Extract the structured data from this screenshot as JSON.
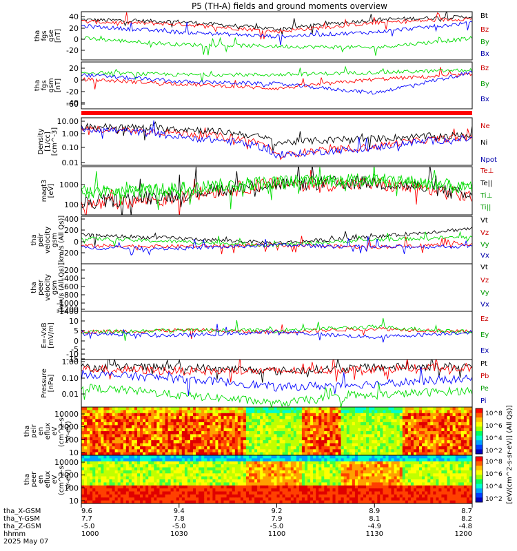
{
  "title": "P5 (TH-A) fields and ground moments overview",
  "colors": {
    "black": "#000000",
    "red": "#ff0000",
    "green": "#00dd00",
    "blue": "#0000ff",
    "darkred": "#cc0000",
    "darkgreen": "#009900",
    "darkblue": "#0000aa"
  },
  "panels": [
    {
      "id": "fgs_gse",
      "ylabel": [
        "tha",
        "fgs",
        "gse",
        "[nT]"
      ],
      "ticks": [
        "40",
        "20",
        "0",
        "-20"
      ],
      "legend": [
        {
          "label": "Bt",
          "color": "#000000"
        },
        {
          "label": "Bz",
          "color": "#cc0000"
        },
        {
          "label": "By",
          "color": "#009900"
        },
        {
          "label": "Bx",
          "color": "#0000aa"
        }
      ]
    },
    {
      "id": "fgs_gsm",
      "ylabel": [
        "tha",
        "fgs",
        "gsm",
        "[nT]"
      ],
      "ticks": [
        "20",
        "0",
        "-20",
        "-40",
        "-60"
      ],
      "legend": [
        {
          "label": "Bz",
          "color": "#cc0000"
        },
        {
          "label": "By",
          "color": "#009900"
        },
        {
          "label": "Bx",
          "color": "#0000aa"
        }
      ]
    },
    {
      "id": "density",
      "ylabel": [
        "Density",
        "[1/cc]",
        "[cm^-3]"
      ],
      "ticks": [
        "10.00",
        "1.00",
        "0.10",
        "0.01"
      ],
      "legend": [
        {
          "label": "Ne",
          "color": "#cc0000"
        },
        {
          "label": "Ni",
          "color": "#000000"
        },
        {
          "label": "Npot",
          "color": "#0000aa"
        }
      ]
    },
    {
      "id": "temperature",
      "ylabel": [
        "magt3",
        "[eV]"
      ],
      "ticks": [
        "1000",
        "100"
      ],
      "legend": [
        {
          "label": "Te⊥",
          "color": "#cc0000"
        },
        {
          "label": "Te||",
          "color": "#000000"
        },
        {
          "label": "Ti⊥",
          "color": "#009900"
        },
        {
          "label": "Ti||",
          "color": "#009900"
        }
      ]
    },
    {
      "id": "peir_velocity",
      "ylabel": [
        "tha",
        "peir",
        "velocity",
        "gsm",
        "[km/s (All Qs)]"
      ],
      "ticks": [
        "400",
        "200",
        "0",
        "-200"
      ],
      "legend": [
        {
          "label": "Vt",
          "color": "#000000"
        },
        {
          "label": "Vz",
          "color": "#cc0000"
        },
        {
          "label": "Vy",
          "color": "#009900"
        },
        {
          "label": "Vx",
          "color": "#0000aa"
        }
      ]
    },
    {
      "id": "peer_velocity",
      "ylabel": [
        "tha",
        "peer",
        "velocity",
        "gsm",
        "[km/s (All Qs)]"
      ],
      "ticks": [
        "-200",
        "-400",
        "-600",
        "-800",
        "-1000",
        "-1200",
        "-1400"
      ],
      "legend": [
        {
          "label": "Vt",
          "color": "#000000"
        },
        {
          "label": "Vz",
          "color": "#cc0000"
        },
        {
          "label": "Vy",
          "color": "#009900"
        },
        {
          "label": "Vx",
          "color": "#0000aa"
        }
      ]
    },
    {
      "id": "efield",
      "ylabel": [
        "E=-VxB",
        "[mV/m]"
      ],
      "ticks": [
        "10",
        "5",
        "0",
        "-5",
        "-10",
        "-15"
      ],
      "legend": [
        {
          "label": "Ez",
          "color": "#cc0000"
        },
        {
          "label": "Ey",
          "color": "#009900"
        },
        {
          "label": "Ex",
          "color": "#0000aa"
        }
      ]
    },
    {
      "id": "pressure",
      "ylabel": [
        "Pressure",
        "[nPa]"
      ],
      "ticks": [
        "1.00",
        "0.10",
        "0.01"
      ],
      "legend": [
        {
          "label": "Pt",
          "color": "#000000"
        },
        {
          "label": "Pb",
          "color": "#cc0000"
        },
        {
          "label": "Pe",
          "color": "#009900"
        },
        {
          "label": "Pi",
          "color": "#0000aa"
        }
      ]
    },
    {
      "id": "peir_spec",
      "ylabel": [
        "tha",
        "peir",
        "en",
        "eflux",
        "eV",
        "(cm^2-s-",
        "sr-eV)"
      ],
      "ticks": [
        "10000",
        "1000",
        "100",
        "10"
      ],
      "cbar_ticks": [
        "10^8",
        "10^6",
        "10^4",
        "10^2"
      ]
    },
    {
      "id": "peer_spec",
      "ylabel": [
        "tha",
        "peer",
        "en",
        "eflux",
        "eV",
        "(cm^2-s-",
        "sr-eV)"
      ],
      "ticks": [
        "10000",
        "1000",
        "100",
        "10"
      ],
      "cbar_ticks": [
        "10^8",
        "10^6",
        "10^4",
        "10^2"
      ]
    }
  ],
  "colorbar_label": "[eV/(cm^2-s-sr-eV)] (All Qs)]",
  "xaxis": {
    "row_labels": [
      "tha_X-GSM",
      "tha_Y-GSM",
      "tha_Z-GSM",
      "hhmm",
      "2025 May 07"
    ],
    "columns": [
      [
        "9.6",
        "7.7",
        "-5.0",
        "1000"
      ],
      [
        "9.4",
        "7.8",
        "-5.0",
        "1030"
      ],
      [
        "9.2",
        "7.9",
        "-5.0",
        "1100"
      ],
      [
        "8.9",
        "8.1",
        "-4.9",
        "1130"
      ],
      [
        "8.7",
        "8.2",
        "-4.8",
        "1200"
      ]
    ]
  },
  "chart_data": {
    "type": "line",
    "title": "P5 (TH-A) fields and ground moments overview",
    "x": [
      "1000",
      "1030",
      "1100",
      "1130",
      "1200"
    ],
    "xlabel": "hhmm",
    "date": "2025 May 07",
    "grid": false,
    "panels": [
      {
        "name": "tha fgs gse [nT]",
        "ylim": [
          -30,
          48
        ],
        "series": [
          {
            "name": "Bt",
            "values": [
              35,
              32,
              20,
              35,
              40
            ]
          },
          {
            "name": "Bz",
            "values": [
              32,
              28,
              16,
              30,
              37
            ]
          },
          {
            "name": "By",
            "values": [
              5,
              -5,
              -8,
              -10,
              5
            ]
          },
          {
            "name": "Bx",
            "values": [
              25,
              15,
              8,
              15,
              30
            ]
          }
        ]
      },
      {
        "name": "tha fgs gsm [nT]",
        "ylim": [
          -75,
          28
        ],
        "series": [
          {
            "name": "Bz",
            "values": [
              -10,
              -20,
              -30,
              -10,
              0
            ]
          },
          {
            "name": "By",
            "values": [
              5,
              0,
              0,
              5,
              10
            ]
          },
          {
            "name": "Bx",
            "values": [
              0,
              -15,
              -20,
              -40,
              5
            ]
          }
        ]
      },
      {
        "name": "Density [1/cc]",
        "scale": "log",
        "ylim": [
          0.005,
          12
        ],
        "series": [
          {
            "name": "Ne",
            "values": [
              2,
              1,
              0.02,
              0.1,
              0.5
            ]
          },
          {
            "name": "Ni",
            "values": [
              3,
              2,
              0.2,
              0.4,
              0.7
            ]
          },
          {
            "name": "Npot",
            "values": [
              2,
              0.5,
              0.02,
              0.08,
              0.4
            ]
          }
        ]
      },
      {
        "name": "magt3 [eV]",
        "scale": "log",
        "ylim": [
          50,
          2500
        ],
        "series": [
          {
            "name": "Te⊥",
            "values": [
              100,
              200,
              600,
              600,
              200
            ]
          },
          {
            "name": "Te||",
            "values": [
              120,
              250,
              600,
              700,
              200
            ]
          },
          {
            "name": "Ti⊥",
            "values": [
              300,
              400,
              700,
              900,
              400
            ]
          },
          {
            "name": "Ti||",
            "values": [
              300,
              400,
              700,
              900,
              400
            ]
          }
        ]
      },
      {
        "name": "tha peir velocity gsm [km/s (All Qs)]",
        "ylim": [
          -280,
          430
        ],
        "series": [
          {
            "name": "Vt",
            "values": [
              150,
              100,
              30,
              120,
              250
            ]
          },
          {
            "name": "Vz",
            "values": [
              -10,
              -20,
              0,
              -30,
              20
            ]
          },
          {
            "name": "Vy",
            "values": [
              100,
              50,
              0,
              80,
              120
            ]
          },
          {
            "name": "Vx",
            "values": [
              -40,
              -50,
              0,
              -30,
              -20
            ]
          }
        ]
      },
      {
        "name": "tha peer velocity gsm [km/s (All Qs)]",
        "ylim": [
          -1500,
          -100
        ],
        "series": []
      },
      {
        "name": "E=-VxB [mV/m]",
        "ylim": [
          -16,
          12
        ],
        "series": [
          {
            "name": "Ez",
            "values": [
              0,
              1,
              0,
              2,
              0
            ]
          },
          {
            "name": "Ey",
            "values": [
              0,
              1,
              1,
              3,
              0
            ]
          },
          {
            "name": "Ex",
            "values": [
              -1,
              -2,
              0,
              -3,
              0
            ]
          }
        ]
      },
      {
        "name": "Pressure [nPa]",
        "scale": "log",
        "ylim": [
          0.002,
          1.5
        ],
        "series": [
          {
            "name": "Pt",
            "values": [
              0.5,
              0.5,
              0.3,
              0.5,
              0.6
            ]
          },
          {
            "name": "Pb",
            "values": [
              0.4,
              0.3,
              0.3,
              0.4,
              0.5
            ]
          },
          {
            "name": "Pe",
            "values": [
              0.03,
              0.01,
              0.003,
              0.01,
              0.02
            ]
          },
          {
            "name": "Pi",
            "values": [
              0.2,
              0.1,
              0.03,
              0.05,
              0.1
            ]
          }
        ]
      },
      {
        "name": "tha peir en eflux",
        "type": "heatmap",
        "scale": "log",
        "ylim": [
          7,
          15000
        ],
        "colorbar": [
          "10^8",
          "10^6",
          "10^4",
          "10^2"
        ]
      },
      {
        "name": "tha peer en eflux",
        "type": "heatmap",
        "scale": "log",
        "ylim": [
          7,
          15000
        ],
        "colorbar": [
          "10^8",
          "10^6",
          "10^4",
          "10^2"
        ]
      }
    ]
  }
}
